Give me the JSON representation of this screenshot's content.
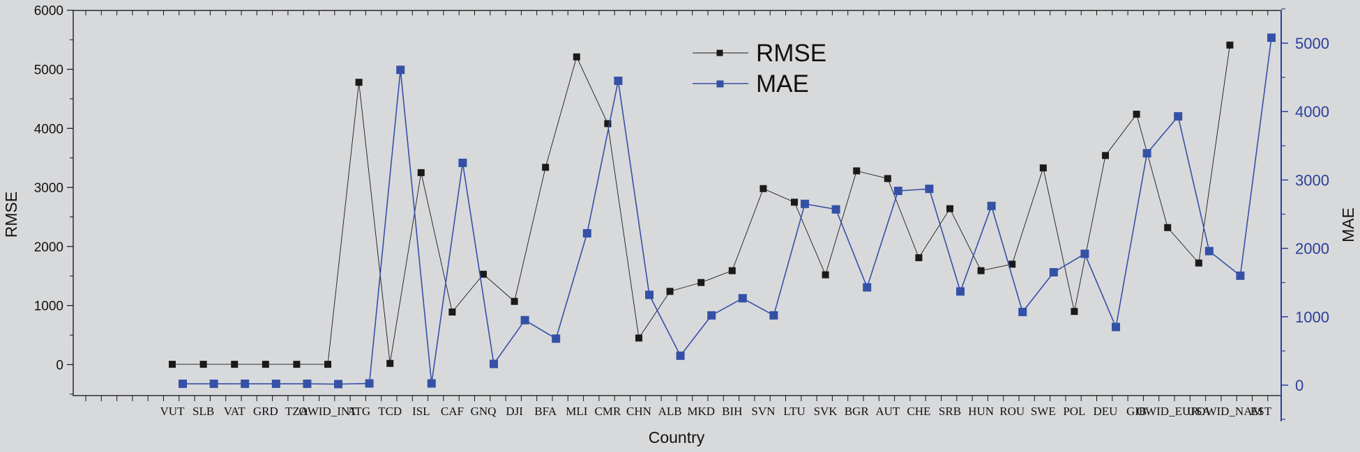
{
  "chart_data": {
    "type": "line",
    "title": "",
    "xlabel": "Country",
    "ylabel": "RMSE",
    "y2label": "MAE",
    "categories": [
      "VUT",
      "SLB",
      "VAT",
      "GRD",
      "TZA",
      "OWID_INT",
      "ATG",
      "TCD",
      "ISL",
      "CAF",
      "GNQ",
      "DJI",
      "BFA",
      "MLI",
      "CMR",
      "CHN",
      "ALB",
      "MKD",
      "BIH",
      "SVN",
      "LTU",
      "SVK",
      "BGR",
      "AUT",
      "CHE",
      "SRB",
      "HUN",
      "ROU",
      "SWE",
      "POL",
      "DEU",
      "GIB",
      "OWID_EUR",
      "USA",
      "OWID_NAM",
      "EST"
    ],
    "ylim": [
      -500,
      6000
    ],
    "y2lim": [
      -500,
      5500
    ],
    "yticks": [
      0,
      1000,
      2000,
      3000,
      4000,
      5000,
      6000
    ],
    "y2ticks": [
      0,
      1000,
      2000,
      3000,
      4000,
      5000
    ],
    "legend_position": "top-center",
    "series": [
      {
        "name": "RMSE",
        "axis": "left",
        "color": "#1a1a1a",
        "points": [
          [
            0,
            5
          ],
          [
            1,
            5
          ],
          [
            2,
            5
          ],
          [
            3,
            5
          ],
          [
            4,
            5
          ],
          [
            5,
            5
          ],
          [
            6,
            4780
          ],
          [
            7,
            20
          ],
          [
            8,
            3250
          ],
          [
            9,
            890
          ],
          [
            10,
            1530
          ],
          [
            11,
            1070
          ],
          [
            12,
            3340
          ],
          [
            13,
            5210
          ],
          [
            14,
            4080
          ],
          [
            15,
            450
          ],
          [
            16,
            1240
          ],
          [
            17,
            1390
          ],
          [
            18,
            1590
          ],
          [
            19,
            2980
          ],
          [
            20,
            2750
          ],
          [
            21,
            1520
          ],
          [
            22,
            3280
          ],
          [
            23,
            3150
          ],
          [
            24,
            1810
          ],
          [
            25,
            2640
          ],
          [
            26,
            1590
          ],
          [
            27,
            1700
          ],
          [
            28,
            3330
          ],
          [
            29,
            900
          ],
          [
            30,
            3540
          ],
          [
            31,
            4240
          ],
          [
            32,
            2320
          ],
          [
            33,
            1720
          ],
          [
            34,
            5410
          ]
        ]
      },
      {
        "name": "MAE",
        "axis": "right",
        "color": "#3451a6",
        "points": [
          [
            0,
            20
          ],
          [
            1,
            20
          ],
          [
            2,
            20
          ],
          [
            3,
            20
          ],
          [
            4,
            20
          ],
          [
            5,
            15
          ],
          [
            6,
            25
          ],
          [
            7,
            4610
          ],
          [
            8,
            25
          ],
          [
            9,
            3250
          ],
          [
            10,
            310
          ],
          [
            11,
            950
          ],
          [
            12,
            680
          ],
          [
            13,
            2220
          ],
          [
            14,
            4450
          ],
          [
            15,
            1320
          ],
          [
            16,
            430
          ],
          [
            17,
            1020
          ],
          [
            18,
            1270
          ],
          [
            19,
            1020
          ],
          [
            20,
            2650
          ],
          [
            21,
            2570
          ],
          [
            22,
            1430
          ],
          [
            23,
            2840
          ],
          [
            24,
            2870
          ],
          [
            25,
            1370
          ],
          [
            26,
            2620
          ],
          [
            27,
            1070
          ],
          [
            28,
            1650
          ],
          [
            29,
            1920
          ],
          [
            30,
            850
          ],
          [
            31,
            3390
          ],
          [
            32,
            3930
          ],
          [
            33,
            1960
          ],
          [
            34,
            1600
          ],
          [
            35,
            5080
          ]
        ]
      }
    ]
  }
}
